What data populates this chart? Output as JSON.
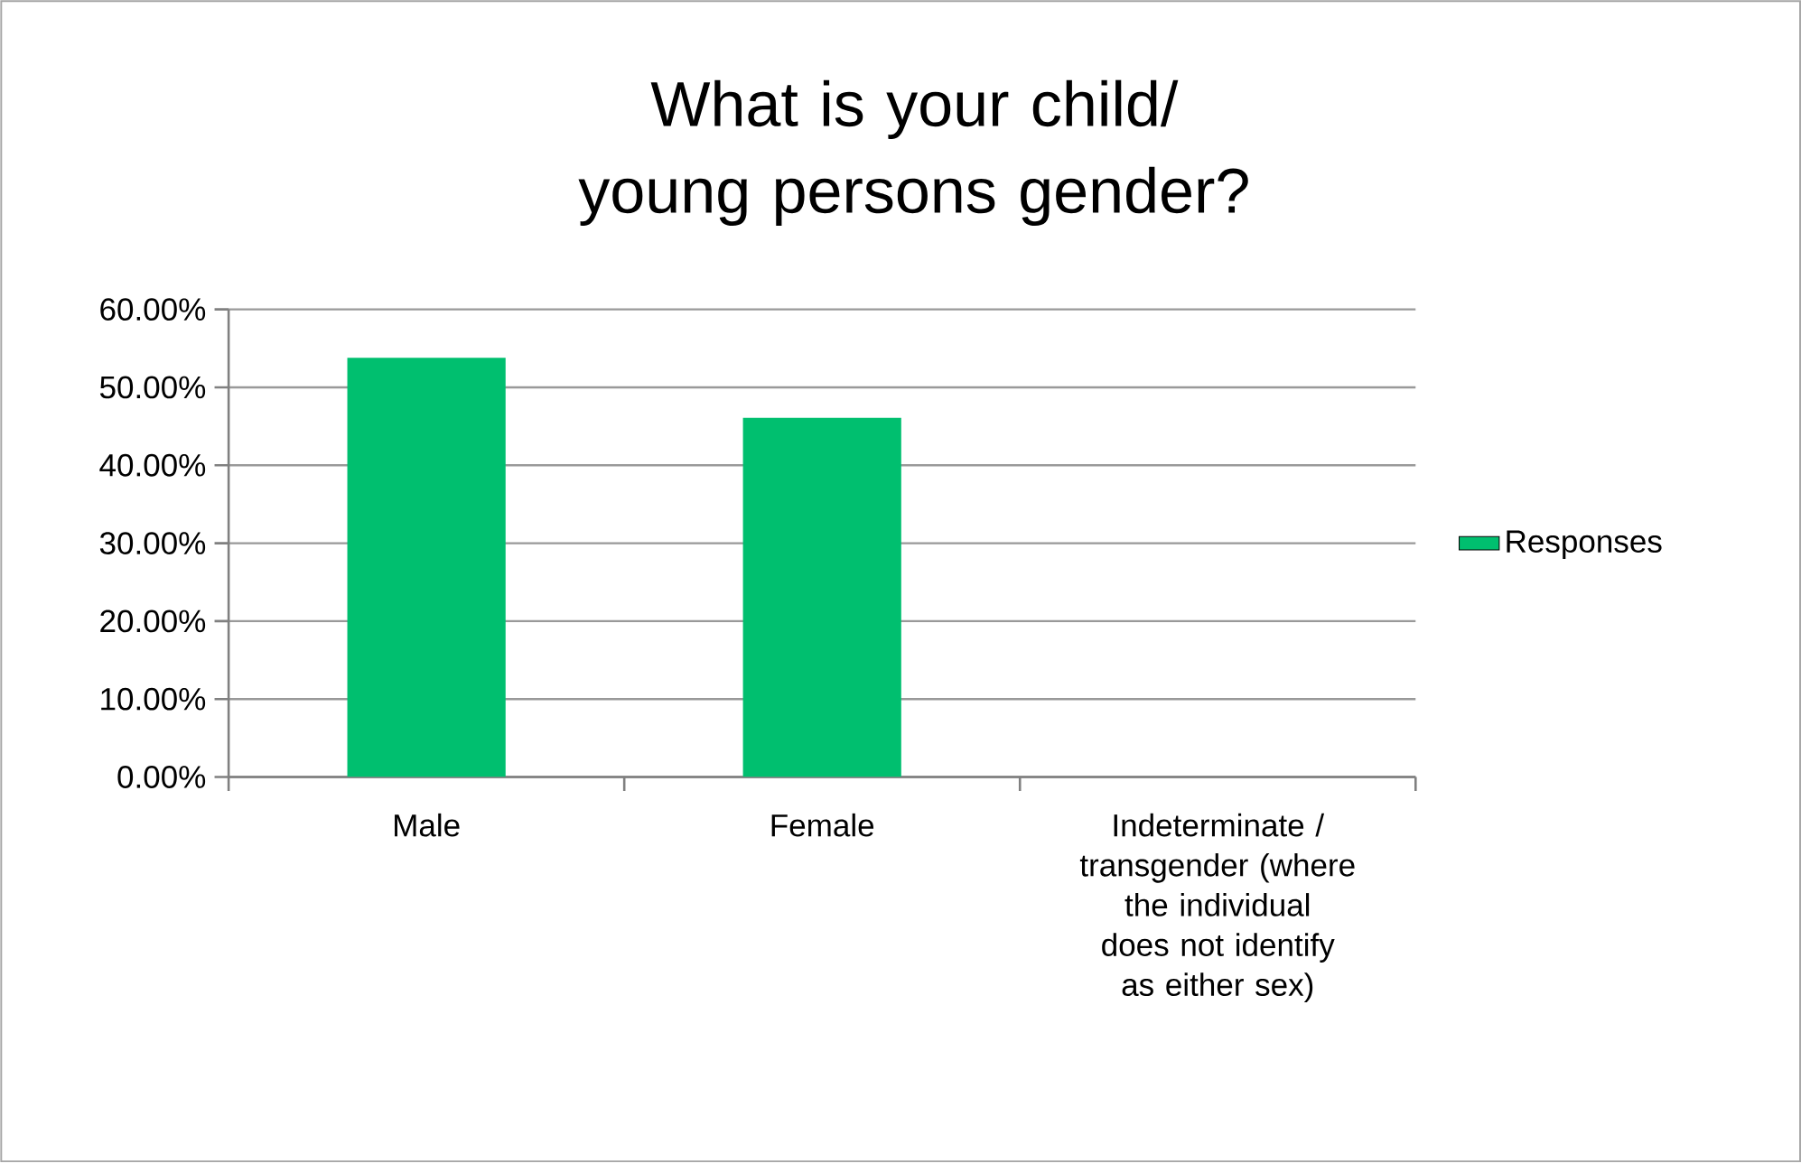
{
  "chart_data": {
    "type": "bar",
    "title": "What is your child/ young persons gender?",
    "categories": [
      "Male",
      "Female",
      "Indeterminate / transgender (where the individual does not identify as either sex)"
    ],
    "series": [
      {
        "name": "Responses",
        "color": "#00bf6f",
        "values": [
          53.8,
          46.1,
          0
        ]
      }
    ],
    "ylim": [
      0,
      60
    ],
    "yticks": [
      {
        "value": 0,
        "label": "0.00%"
      },
      {
        "value": 10,
        "label": "10.00%"
      },
      {
        "value": 20,
        "label": "20.00%"
      },
      {
        "value": 30,
        "label": "30.00%"
      },
      {
        "value": 40,
        "label": "40.00%"
      },
      {
        "value": 50,
        "label": "50.00%"
      },
      {
        "value": 60,
        "label": "60.00%"
      }
    ],
    "grid": "y",
    "legend": "right"
  }
}
